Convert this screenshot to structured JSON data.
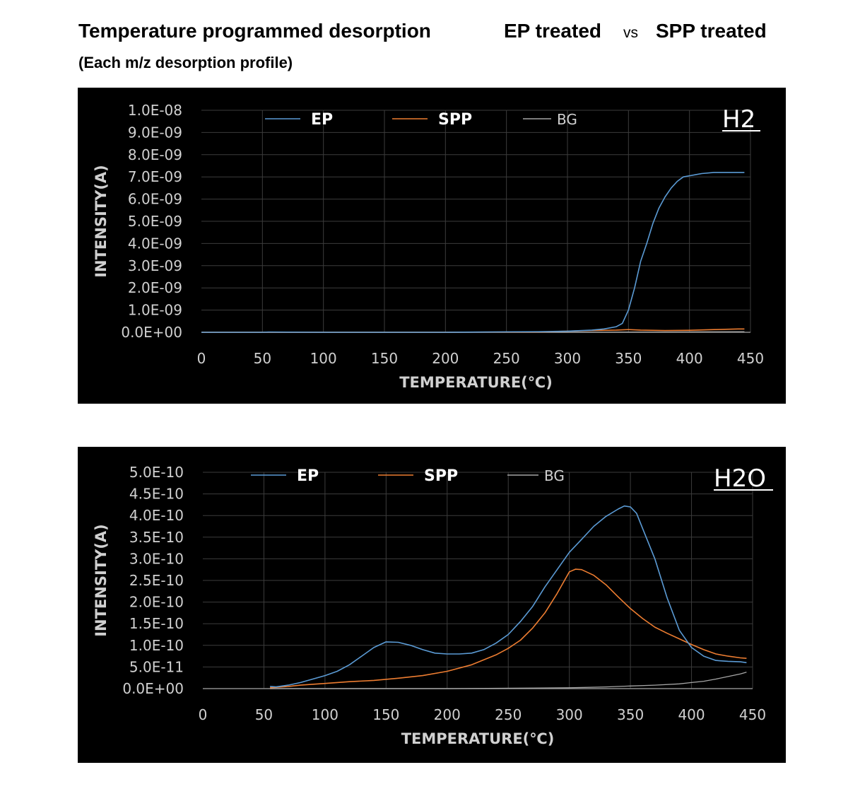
{
  "header": {
    "title": "Temperature programmed desorption",
    "ep_treated": "EP treated",
    "vs": "vs",
    "spp_treated": "SPP treated",
    "subtitle": "(Each m/z desorption profile)"
  },
  "colors": {
    "EP": "#5b9bd5",
    "SPP": "#ed7d31",
    "BG": "#a6a6a6",
    "background": "#000000"
  },
  "chart_data": [
    {
      "type": "line",
      "tag": "H2",
      "xlabel": "TEMPERATURE(℃)",
      "ylabel": "INTENSITY(A)",
      "xlim": [
        0,
        450
      ],
      "ylim": [
        0,
        1e-08
      ],
      "xticks": [
        0,
        50,
        100,
        150,
        200,
        250,
        300,
        350,
        400,
        450
      ],
      "xtick_labels": [
        "0",
        "50",
        "100",
        "150",
        "200",
        "250",
        "300",
        "350",
        "400",
        "450"
      ],
      "yticks": [
        0,
        1e-09,
        2e-09,
        3e-09,
        4e-09,
        5e-09,
        6e-09,
        7e-09,
        8e-09,
        9e-09,
        1e-08
      ],
      "ytick_labels": [
        "0.0E+00",
        "1.0E-09",
        "2.0E-09",
        "3.0E-09",
        "4.0E-09",
        "5.0E-09",
        "6.0E-09",
        "7.0E-09",
        "8.0E-09",
        "9.0E-09",
        "1.0E-08"
      ],
      "grid": true,
      "legend_position": "top",
      "series": [
        {
          "name": "EP",
          "x": [
            0,
            50,
            55,
            100,
            200,
            280,
            300,
            320,
            330,
            340,
            345,
            350,
            355,
            360,
            365,
            370,
            375,
            380,
            385,
            390,
            395,
            400,
            405,
            410,
            420,
            430,
            440,
            445
          ],
          "y": [
            0,
            0,
            1e-11,
            0,
            0,
            3e-11,
            5e-11,
            1e-10,
            1.5e-10,
            2.5e-10,
            4e-10,
            1e-09,
            2e-09,
            3.2e-09,
            4e-09,
            4.9e-09,
            5.6e-09,
            6.1e-09,
            6.5e-09,
            6.8e-09,
            7e-09,
            7.05e-09,
            7.1e-09,
            7.15e-09,
            7.2e-09,
            7.2e-09,
            7.2e-09,
            7.2e-09
          ]
        },
        {
          "name": "SPP",
          "x": [
            0,
            100,
            200,
            280,
            300,
            320,
            340,
            350,
            360,
            380,
            400,
            420,
            440,
            445
          ],
          "y": [
            0,
            0,
            0,
            2e-11,
            5e-11,
            8e-11,
            1e-10,
            1.2e-10,
            1e-10,
            8e-11,
            9e-11,
            1.2e-10,
            1.5e-10,
            1.5e-10
          ]
        },
        {
          "name": "BG",
          "x": [
            0,
            100,
            200,
            300,
            400,
            445
          ],
          "y": [
            0,
            0,
            0,
            0,
            2e-11,
            3e-11
          ]
        }
      ]
    },
    {
      "type": "line",
      "tag": "H2O",
      "xlabel": "TEMPERATURE(℃)",
      "ylabel": "INTENSITY(A)",
      "xlim": [
        0,
        450
      ],
      "ylim": [
        0,
        5e-10
      ],
      "xticks": [
        0,
        50,
        100,
        150,
        200,
        250,
        300,
        350,
        400,
        450
      ],
      "xtick_labels": [
        "0",
        "50",
        "100",
        "150",
        "200",
        "250",
        "300",
        "350",
        "400",
        "450"
      ],
      "yticks": [
        0,
        5e-11,
        1e-10,
        1.5e-10,
        2e-10,
        2.5e-10,
        3e-10,
        3.5e-10,
        4e-10,
        4.5e-10,
        5e-10
      ],
      "ytick_labels": [
        "0.0E+00",
        "5.0E-11",
        "1.0E-10",
        "1.5E-10",
        "2.0E-10",
        "2.5E-10",
        "3.0E-10",
        "3.5E-10",
        "4.0E-10",
        "4.5E-10",
        "5.0E-10"
      ],
      "grid": true,
      "legend_position": "top",
      "series": [
        {
          "name": "EP",
          "x": [
            55,
            60,
            70,
            80,
            90,
            100,
            110,
            120,
            130,
            140,
            150,
            160,
            170,
            180,
            190,
            200,
            210,
            220,
            230,
            240,
            250,
            260,
            270,
            280,
            290,
            300,
            310,
            320,
            330,
            340,
            345,
            350,
            355,
            360,
            370,
            380,
            390,
            400,
            410,
            420,
            430,
            440,
            445
          ],
          "y": [
            5e-12,
            4e-12,
            8e-12,
            1.4e-11,
            2.2e-11,
            3e-11,
            4e-11,
            5.5e-11,
            7.5e-11,
            9.5e-11,
            1.08e-10,
            1.07e-10,
            1e-10,
            9e-11,
            8.2e-11,
            8e-11,
            8e-11,
            8.2e-11,
            9e-11,
            1.05e-10,
            1.25e-10,
            1.55e-10,
            1.9e-10,
            2.35e-10,
            2.75e-10,
            3.15e-10,
            3.45e-10,
            3.75e-10,
            3.98e-10,
            4.15e-10,
            4.22e-10,
            4.2e-10,
            4.05e-10,
            3.7e-10,
            3e-10,
            2.1e-10,
            1.35e-10,
            9.5e-11,
            7.5e-11,
            6.5e-11,
            6.3e-11,
            6.2e-11,
            6e-11
          ]
        },
        {
          "name": "SPP",
          "x": [
            55,
            70,
            80,
            100,
            120,
            140,
            160,
            180,
            200,
            220,
            240,
            250,
            260,
            270,
            280,
            290,
            300,
            305,
            310,
            320,
            330,
            340,
            350,
            360,
            370,
            380,
            390,
            400,
            410,
            420,
            430,
            440,
            445
          ],
          "y": [
            2e-12,
            5e-12,
            8e-12,
            1.2e-11,
            1.6e-11,
            1.9e-11,
            2.4e-11,
            3e-11,
            4e-11,
            5.5e-11,
            7.8e-11,
            9.3e-11,
            1.12e-10,
            1.4e-10,
            1.75e-10,
            2.2e-10,
            2.7e-10,
            2.76e-10,
            2.75e-10,
            2.62e-10,
            2.4e-10,
            2.12e-10,
            1.85e-10,
            1.62e-10,
            1.42e-10,
            1.28e-10,
            1.15e-10,
            1.02e-10,
            9e-11,
            8e-11,
            7.5e-11,
            7.1e-11,
            7e-11
          ]
        },
        {
          "name": "BG",
          "x": [
            55,
            100,
            200,
            300,
            330,
            350,
            370,
            390,
            400,
            410,
            420,
            430,
            440,
            445
          ],
          "y": [
            0,
            0,
            0,
            2e-12,
            4e-12,
            6e-12,
            8e-12,
            1.1e-11,
            1.4e-11,
            1.7e-11,
            2.2e-11,
            2.8e-11,
            3.4e-11,
            3.8e-11
          ]
        }
      ]
    }
  ]
}
